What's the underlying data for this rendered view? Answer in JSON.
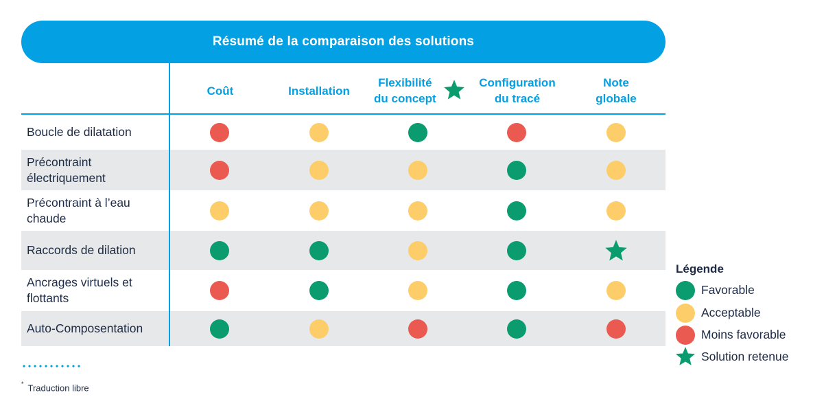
{
  "title": "Résumé de la comparaison des solutions",
  "columns": [
    {
      "label": "Coût"
    },
    {
      "label": "Installation"
    },
    {
      "label": "Flexibilité du concept",
      "line1": "Flexibilité",
      "line2": "du concept",
      "starred": true
    },
    {
      "label": "Configuration du tracé",
      "line1": "Configuration",
      "line2": "du tracé"
    },
    {
      "label": "Note globale",
      "line1": "Note",
      "line2": "globale"
    }
  ],
  "rows": [
    {
      "label": "Boucle de dilatation",
      "ratings": [
        "moins-favorable",
        "acceptable",
        "favorable",
        "moins-favorable",
        "acceptable"
      ]
    },
    {
      "label": "Précontraint électriquement",
      "ratings": [
        "moins-favorable",
        "acceptable",
        "acceptable",
        "favorable",
        "acceptable"
      ]
    },
    {
      "label": "Précontraint à l’eau chaude",
      "ratings": [
        "acceptable",
        "acceptable",
        "acceptable",
        "favorable",
        "acceptable"
      ]
    },
    {
      "label": "Raccords de dilation",
      "ratings": [
        "favorable",
        "favorable",
        "acceptable",
        "favorable",
        "solution-retenue"
      ]
    },
    {
      "label": "Ancrages virtuels et flottants",
      "ratings": [
        "moins-favorable",
        "favorable",
        "acceptable",
        "favorable",
        "acceptable"
      ]
    },
    {
      "label": "Auto-Composentation",
      "ratings": [
        "favorable",
        "acceptable",
        "moins-favorable",
        "favorable",
        "moins-favorable"
      ]
    }
  ],
  "legend": {
    "title": "Légende",
    "items": [
      {
        "key": "favorable",
        "label": "Favorable",
        "color": "#0a9c6e"
      },
      {
        "key": "acceptable",
        "label": "Acceptable",
        "color": "#fdcd6a"
      },
      {
        "key": "moins-favorable",
        "label": "Moins favorable",
        "color": "#ea5a50"
      },
      {
        "key": "solution-retenue",
        "label": "Solution retenue",
        "color": "#0a9c6e",
        "icon": "star-icon"
      }
    ]
  },
  "footnote": {
    "marker": "*",
    "text": "Traduction libre"
  },
  "colors": {
    "accent": "#03a0e3",
    "row_shade": "#e7e8e9",
    "text": "#1e2b45"
  }
}
